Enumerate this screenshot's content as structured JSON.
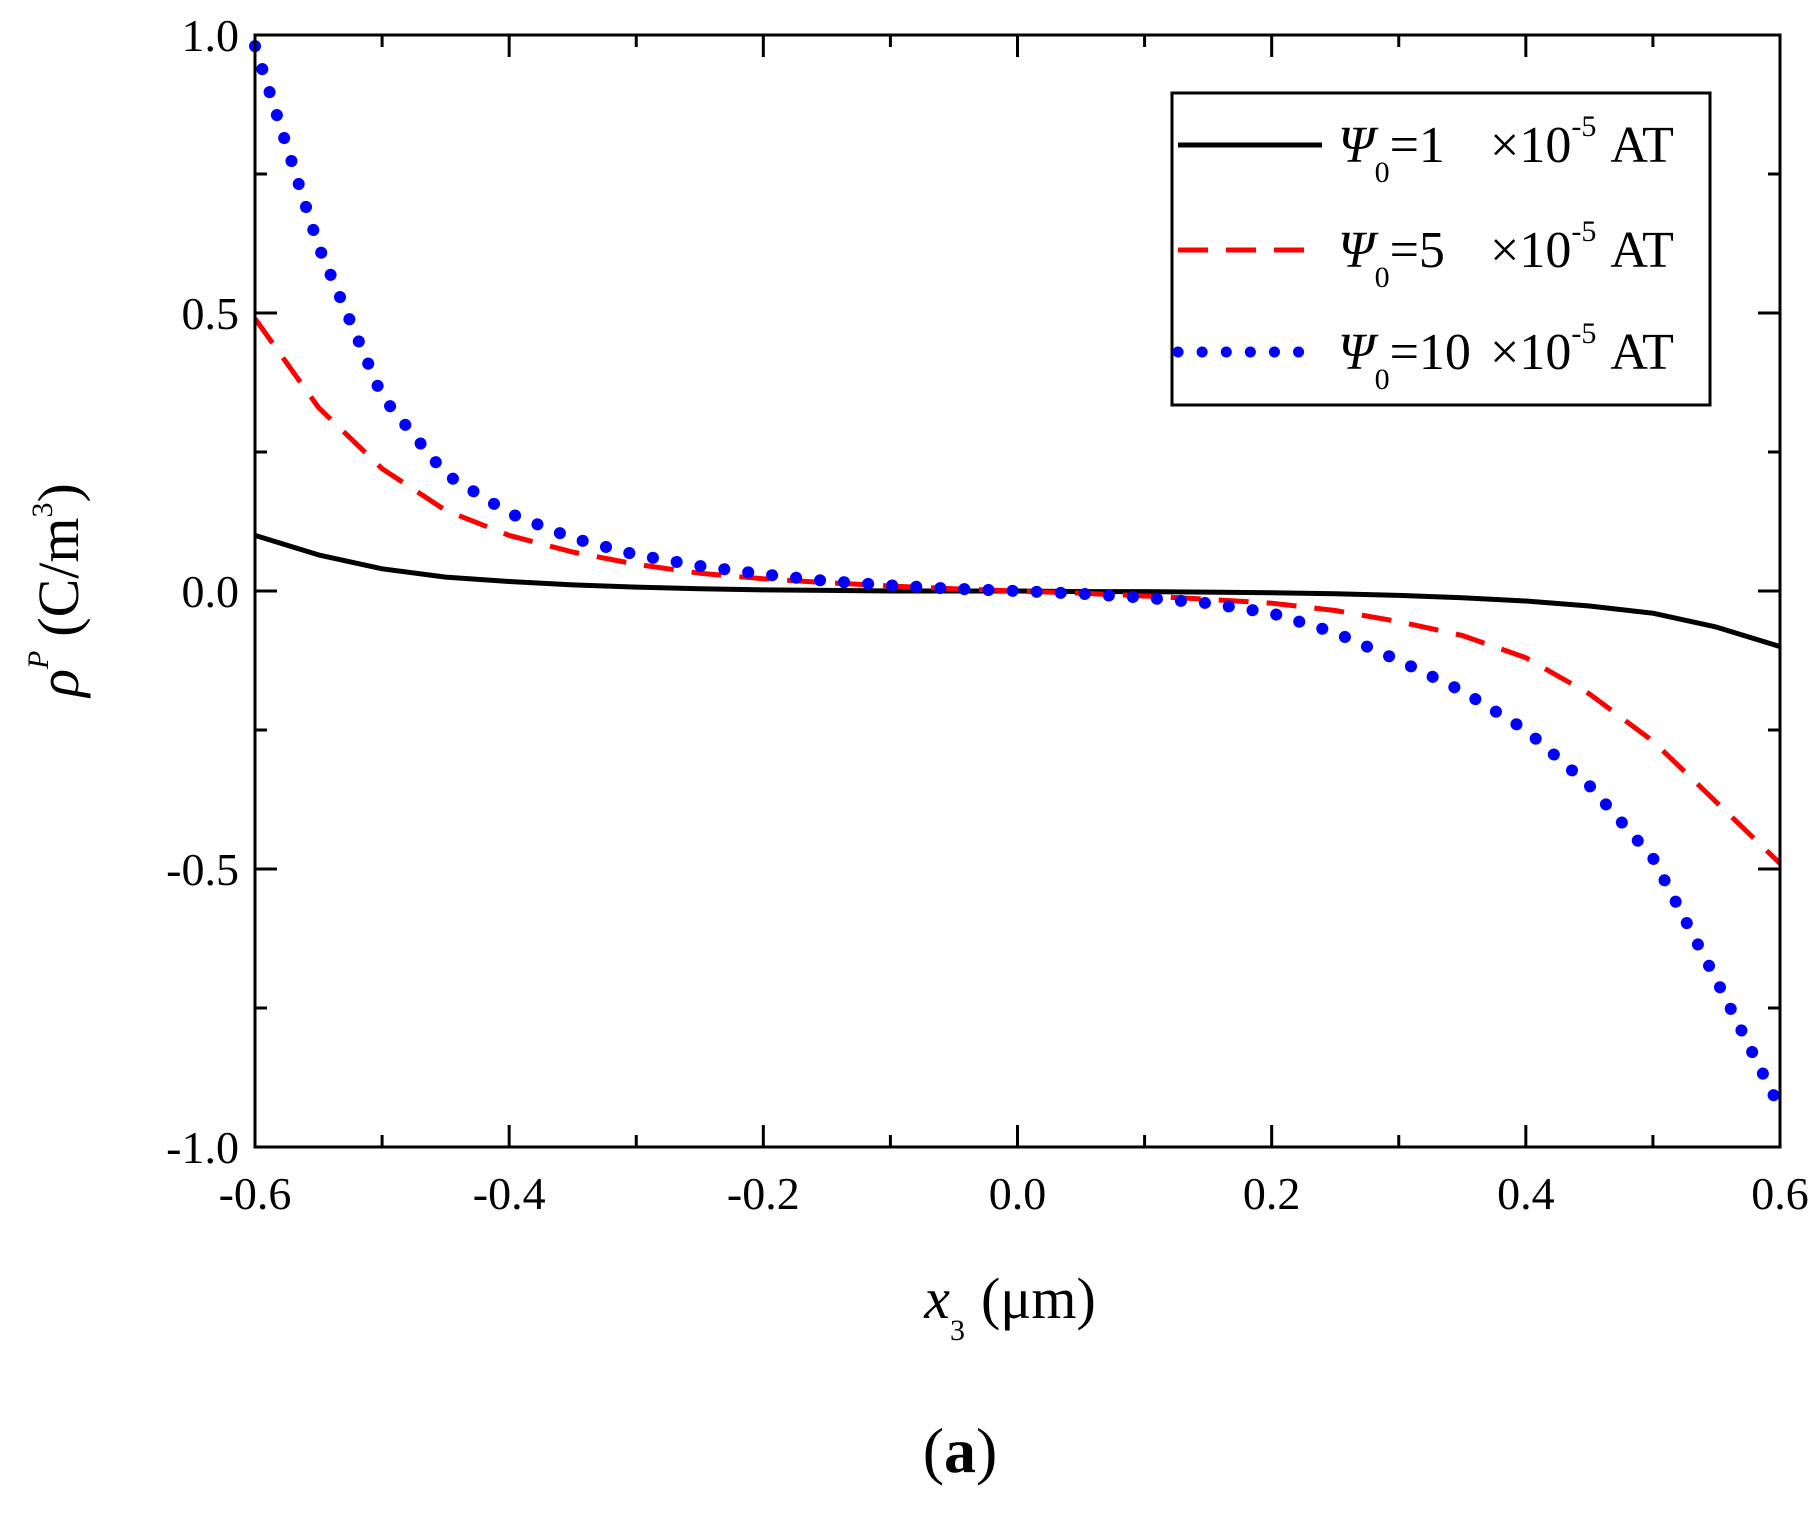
{
  "chart_data": {
    "type": "line",
    "title": "",
    "xlabel": {
      "symbol": "x",
      "subscript": "3",
      "unit": "(μm)"
    },
    "ylabel": {
      "symbol": "ρ",
      "superscript": "P",
      "unit_open": "(C/m",
      "unit_sup": "3",
      "unit_close": ")"
    },
    "xlim": [
      -0.6,
      0.6
    ],
    "ylim": [
      -1.0,
      1.0
    ],
    "x_ticks": [
      "-0.6",
      "-0.4",
      "-0.2",
      "0.0",
      "0.2",
      "0.4",
      "0.6"
    ],
    "y_ticks": [
      "-1.0",
      "-0.5",
      "0.0",
      "0.5",
      "1.0"
    ],
    "grid": false,
    "legend_position": "top-right",
    "panel_label": {
      "open": "(",
      "letter": "a",
      "close": ")"
    },
    "x": [
      -0.6,
      -0.55,
      -0.5,
      -0.45,
      -0.4,
      -0.35,
      -0.3,
      -0.25,
      -0.2,
      -0.15,
      -0.1,
      -0.05,
      0.0,
      0.05,
      0.1,
      0.15,
      0.2,
      0.25,
      0.3,
      0.35,
      0.4,
      0.45,
      0.5,
      0.55,
      0.6
    ],
    "series": [
      {
        "name": "Ψ0=1 ×10^-5 AT",
        "legend": {
          "sym": "Ψ",
          "sub": "0",
          "val": "=1",
          "mult": "×10",
          "exp": "-5",
          "unit": "AT"
        },
        "color": "#000000",
        "style": "solid",
        "values": [
          0.1,
          0.065,
          0.04,
          0.025,
          0.017,
          0.011,
          0.007,
          0.004,
          0.002,
          0.001,
          0.0,
          0.0,
          0.0,
          -0.001,
          -0.001,
          -0.002,
          -0.003,
          -0.005,
          -0.008,
          -0.012,
          -0.018,
          -0.027,
          -0.04,
          -0.065,
          -0.1
        ]
      },
      {
        "name": "Ψ0=5 ×10^-5 AT",
        "legend": {
          "sym": "Ψ",
          "sub": "0",
          "val": "=5",
          "mult": "×10",
          "exp": "-5",
          "unit": "AT"
        },
        "color": "#ff0000",
        "style": "dashed",
        "values": [
          0.49,
          0.33,
          0.22,
          0.145,
          0.1,
          0.07,
          0.048,
          0.032,
          0.022,
          0.015,
          0.009,
          0.004,
          0.0,
          -0.004,
          -0.009,
          -0.015,
          -0.022,
          -0.035,
          -0.055,
          -0.08,
          -0.12,
          -0.185,
          -0.27,
          -0.38,
          -0.49
        ]
      },
      {
        "name": "Ψ0=10 ×10^-5 AT",
        "legend": {
          "sym": "Ψ",
          "sub": "0",
          "val": "=10",
          "mult": "×10",
          "exp": "-5",
          "unit": "AT"
        },
        "color": "#0000ff",
        "style": "dotted",
        "values": [
          0.98,
          0.62,
          0.35,
          0.21,
          0.14,
          0.095,
          0.065,
          0.045,
          0.03,
          0.018,
          0.01,
          0.004,
          0.0,
          -0.005,
          -0.012,
          -0.022,
          -0.04,
          -0.075,
          -0.125,
          -0.18,
          -0.25,
          -0.35,
          -0.48,
          -0.7,
          -0.93
        ]
      }
    ]
  }
}
